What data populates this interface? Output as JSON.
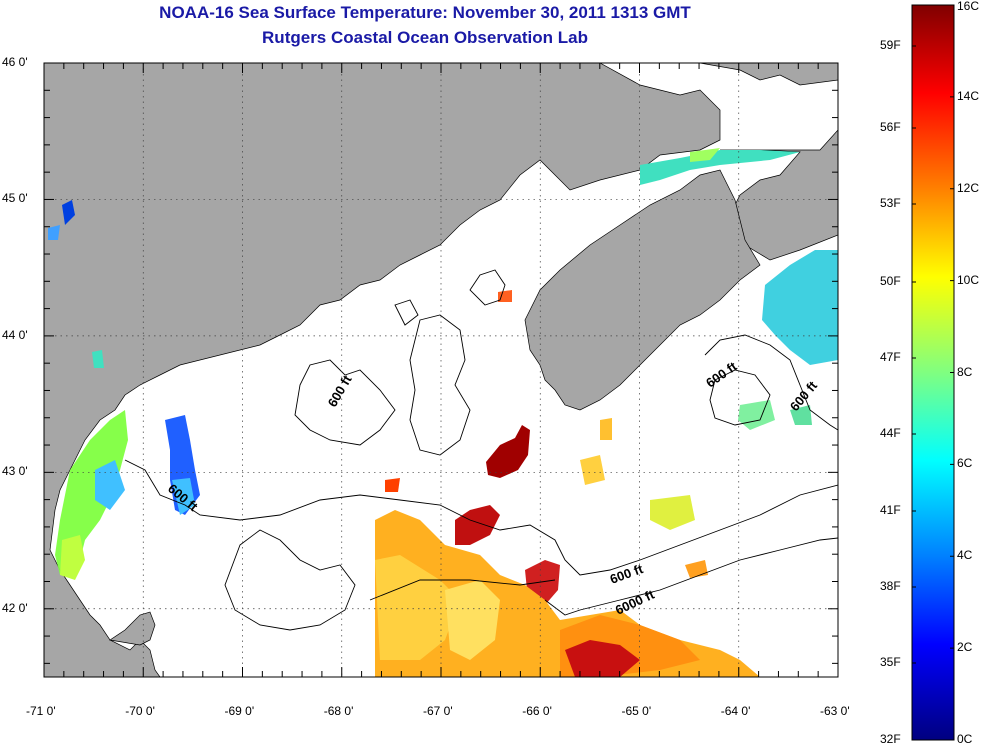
{
  "title": {
    "line1": "NOAA-16 Sea Surface Temperature:  November 30, 2011 1313 GMT",
    "line2": "Rutgers Coastal Ocean Observation Lab"
  },
  "map": {
    "lon_range": [
      -71,
      -63
    ],
    "lat_range": [
      41.5,
      46
    ],
    "lon_ticks": [
      {
        "value": -71,
        "label": "-71 0'"
      },
      {
        "value": -70,
        "label": "-70 0'"
      },
      {
        "value": -69,
        "label": "-69 0'"
      },
      {
        "value": -68,
        "label": "-68 0'"
      },
      {
        "value": -67,
        "label": "-67 0'"
      },
      {
        "value": -66,
        "label": "-66 0'"
      },
      {
        "value": -65,
        "label": "-65 0'"
      },
      {
        "value": -64,
        "label": "-64 0'"
      },
      {
        "value": -63,
        "label": "-63 0'"
      }
    ],
    "lat_ticks": [
      {
        "value": 46,
        "label": "46 0'"
      },
      {
        "value": 45,
        "label": "45 0'"
      },
      {
        "value": 44,
        "label": "44 0'"
      },
      {
        "value": 43,
        "label": "43 0'"
      },
      {
        "value": 42,
        "label": "42 0'"
      }
    ],
    "contour_labels": [
      "600 ft",
      "600 ft",
      "600 ft",
      "600 ft",
      "600 ft",
      "6000 ft"
    ],
    "land_color": "#a6a6a6",
    "ocean_color": "#ffffff"
  },
  "colorbar": {
    "celsius": [
      "16C",
      "14C",
      "12C",
      "10C",
      "8C",
      "6C",
      "4C",
      "2C",
      "0C"
    ],
    "fahrenheit": [
      "59F",
      "56F",
      "53F",
      "50F",
      "47F",
      "44F",
      "41F",
      "38F",
      "35F",
      "32F"
    ],
    "colors": [
      "#800000",
      "#ff0000",
      "#ff8000",
      "#ffff00",
      "#80ff80",
      "#00ffff",
      "#0080ff",
      "#0000ff",
      "#000080"
    ]
  }
}
